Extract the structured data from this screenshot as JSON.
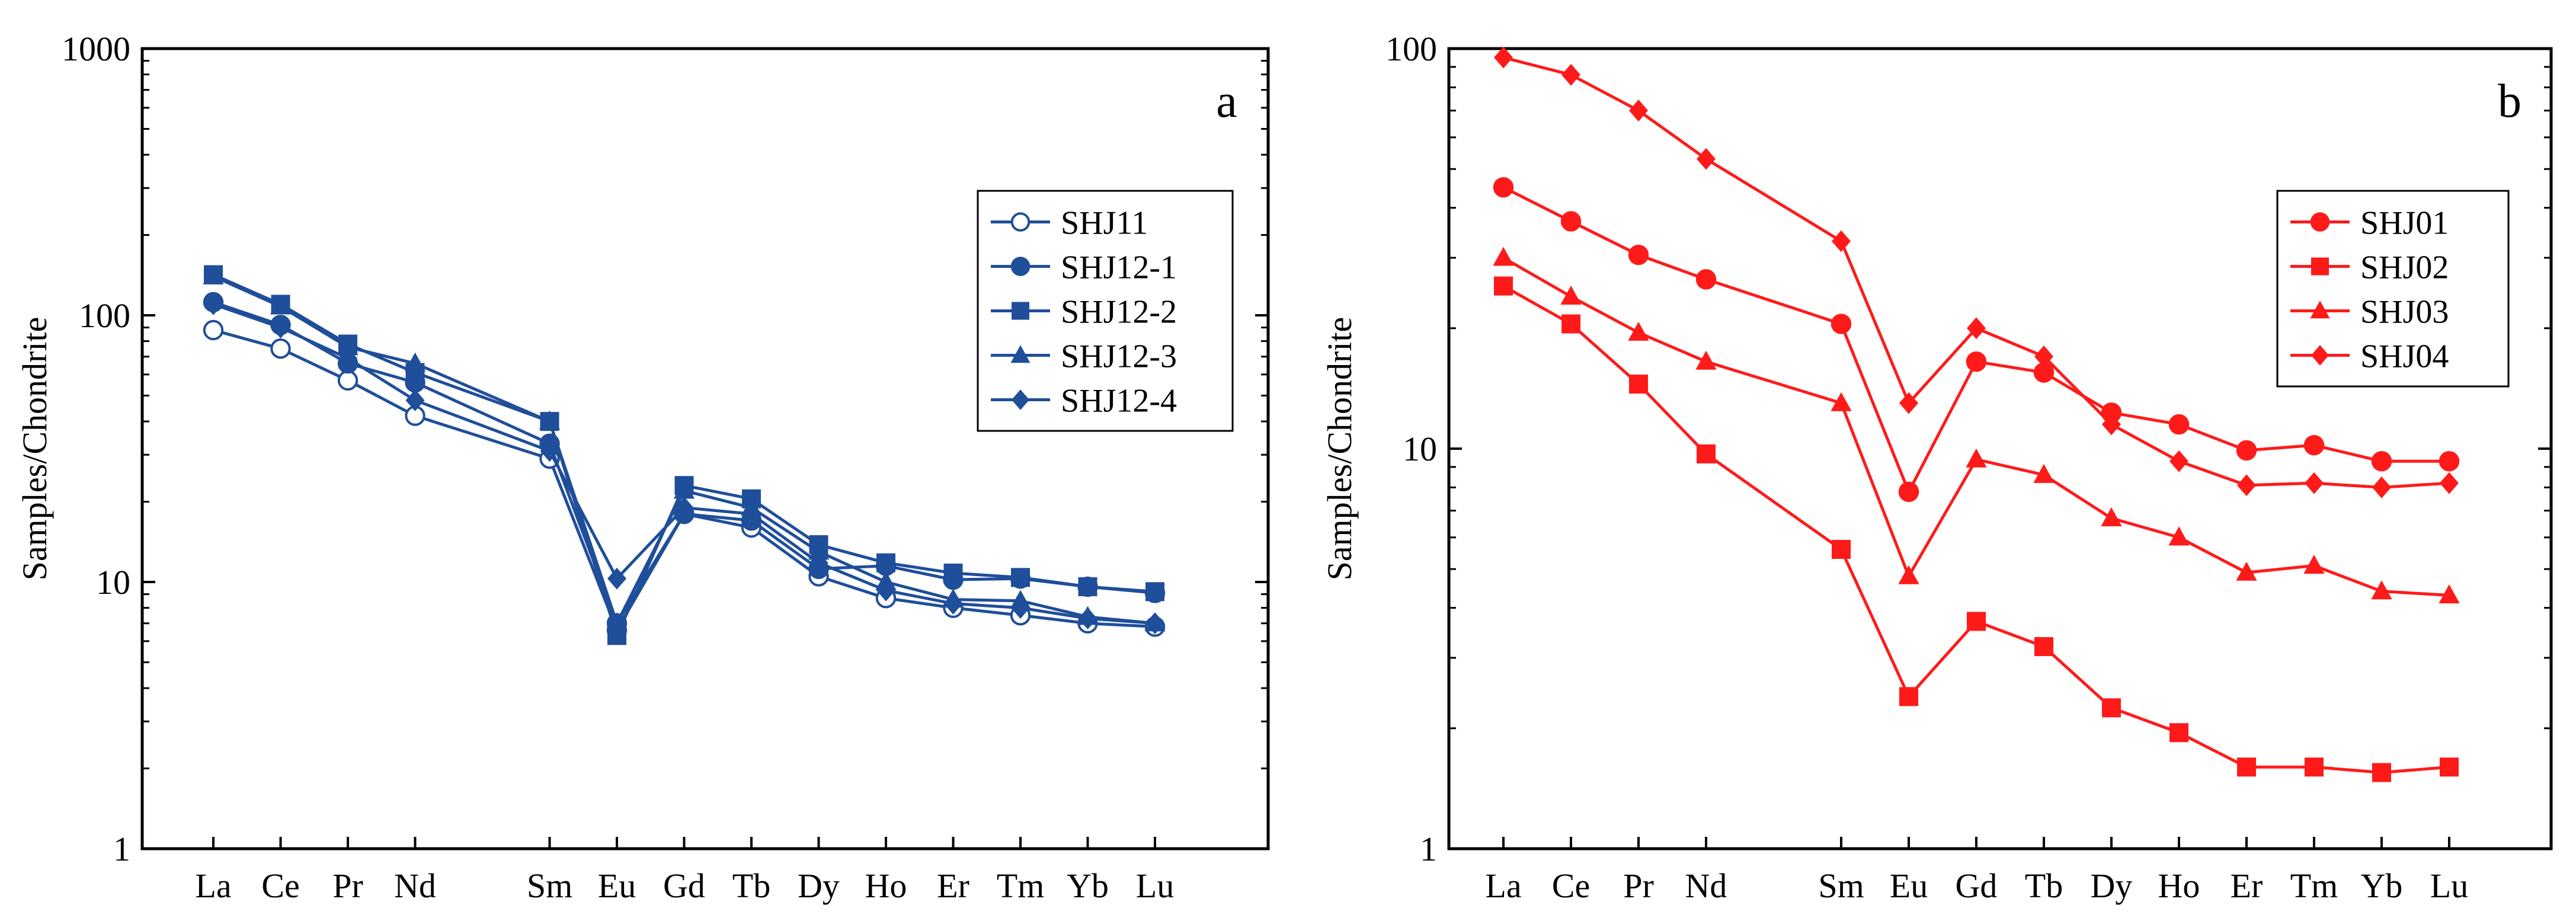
{
  "chart_data": [
    {
      "type": "line",
      "panel_label": "a",
      "ylabel": "Samples/Chondrite",
      "xlabel": "",
      "yscale": "log",
      "ylim": [
        1,
        1000
      ],
      "y_ticks": [
        1,
        10,
        100,
        1000
      ],
      "y_tick_labels": [
        "1",
        "10",
        "100",
        "1000"
      ],
      "categories": [
        "La",
        "Ce",
        "Pr",
        "Nd",
        "Sm",
        "Eu",
        "Gd",
        "Tb",
        "Dy",
        "Ho",
        "Er",
        "Tm",
        "Yb",
        "Lu"
      ],
      "category_positions": [
        0,
        1,
        2,
        3,
        5,
        6,
        7,
        8,
        9,
        10,
        11,
        12,
        13,
        14
      ],
      "color": "#1f4e9a",
      "legend_position": "upper-right",
      "series": [
        {
          "name": "SHJ11",
          "marker": "circle-open",
          "values": [
            88,
            75,
            57,
            42,
            29,
            6.6,
            18,
            16,
            10.5,
            8.7,
            8.0,
            7.5,
            7.0,
            6.8
          ]
        },
        {
          "name": "SHJ12-1",
          "marker": "circle",
          "values": [
            112,
            92,
            66,
            56,
            33,
            7.0,
            18,
            17,
            11.2,
            11.5,
            10.2,
            10.3,
            9.6,
            9.1
          ]
        },
        {
          "name": "SHJ12-2",
          "marker": "square",
          "values": [
            142,
            110,
            78,
            61,
            40,
            6.3,
            23,
            20.5,
            13.8,
            11.8,
            10.8,
            10.4,
            9.6,
            9.2
          ]
        },
        {
          "name": "SHJ12-3",
          "marker": "triangle",
          "values": [
            140,
            108,
            76,
            66,
            40,
            7.0,
            22,
            19,
            13.0,
            10.0,
            8.6,
            8.5,
            7.4,
            7.0
          ]
        },
        {
          "name": "SHJ12-4",
          "marker": "diamond",
          "values": [
            110,
            90,
            69,
            48,
            31,
            10.3,
            19,
            18,
            11.8,
            9.3,
            8.3,
            8.0,
            7.3,
            7.0
          ]
        }
      ]
    },
    {
      "type": "line",
      "panel_label": "b",
      "ylabel": "Samples/Chondrite",
      "xlabel": "",
      "yscale": "log",
      "ylim": [
        1,
        100
      ],
      "y_ticks": [
        1,
        10,
        100
      ],
      "y_tick_labels": [
        "1",
        "10",
        "100"
      ],
      "categories": [
        "La",
        "Ce",
        "Pr",
        "Nd",
        "Sm",
        "Eu",
        "Gd",
        "Tb",
        "Dy",
        "Ho",
        "Er",
        "Tm",
        "Yb",
        "Lu"
      ],
      "category_positions": [
        0,
        1,
        2,
        3,
        5,
        6,
        7,
        8,
        9,
        10,
        11,
        12,
        13,
        14
      ],
      "color": "#ff1a1a",
      "legend_position": "upper-right",
      "series": [
        {
          "name": "SHJ01",
          "marker": "circle",
          "values": [
            45,
            37,
            30.5,
            26.5,
            20.5,
            7.8,
            16.5,
            15.5,
            12.3,
            11.5,
            9.9,
            10.2,
            9.3,
            9.3
          ]
        },
        {
          "name": "SHJ02",
          "marker": "square",
          "values": [
            25.5,
            20.5,
            14.5,
            9.7,
            5.6,
            2.4,
            3.7,
            3.2,
            2.25,
            1.95,
            1.6,
            1.6,
            1.55,
            1.6
          ]
        },
        {
          "name": "SHJ03",
          "marker": "triangle",
          "values": [
            30,
            24,
            19.5,
            16.5,
            13,
            4.8,
            9.4,
            8.6,
            6.7,
            6.0,
            4.9,
            5.1,
            4.4,
            4.3
          ]
        },
        {
          "name": "SHJ04",
          "marker": "diamond",
          "values": [
            95,
            86,
            70,
            53,
            33,
            13,
            20,
            17,
            11.5,
            9.3,
            8.1,
            8.2,
            8.0,
            8.2
          ]
        }
      ]
    }
  ]
}
